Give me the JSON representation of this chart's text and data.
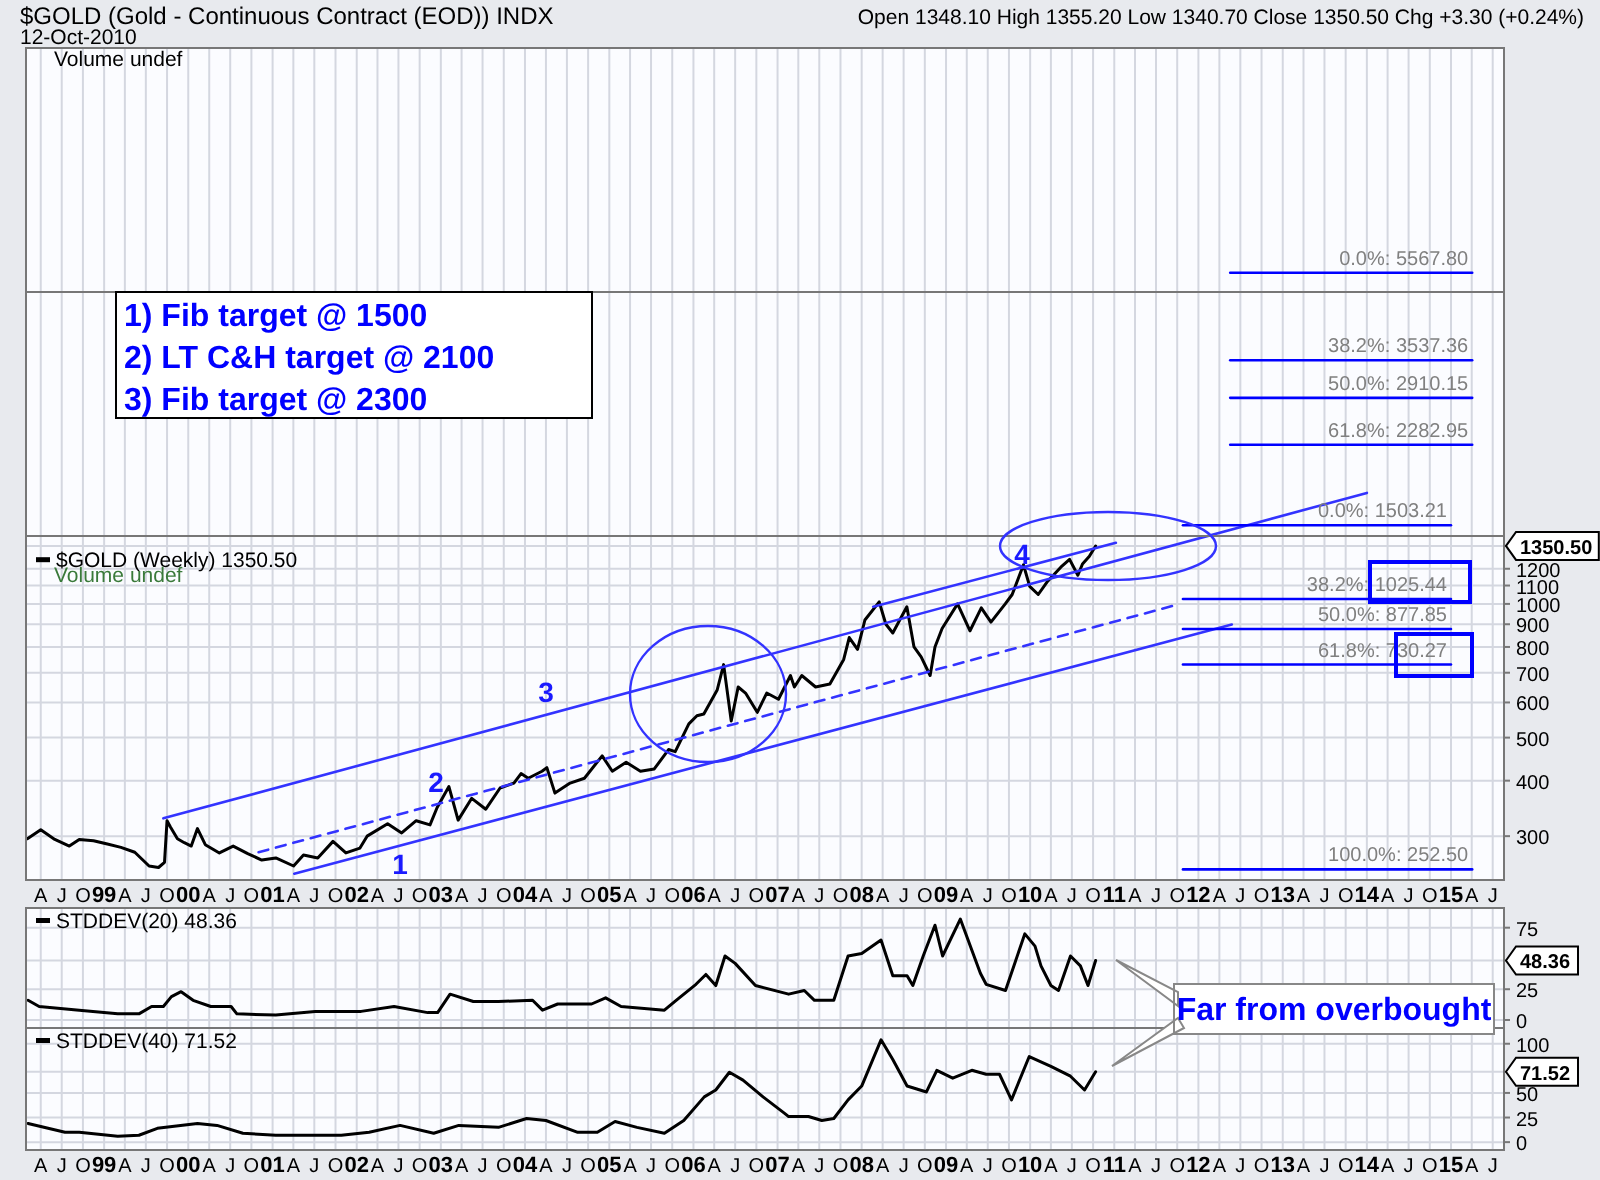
{
  "chart_data": [
    {
      "type": "line",
      "title": "$GOLD (Gold - Continuous Contract (EOD)) INDX",
      "subtitle": "12-Oct-2010",
      "log": true,
      "grid": true,
      "legend": "left",
      "xlim": [
        "1998-01-27",
        "2015-08-19"
      ],
      "ylim": [
        239,
        17850
      ],
      "xticks": [
        {
          "value": "1998-04",
          "label": "A"
        },
        {
          "value": "1998-07",
          "label": "J"
        },
        {
          "value": "1998-10",
          "label": "O"
        },
        {
          "value": "1999-01",
          "label": "99"
        },
        {
          "value": "1999-04",
          "label": "A"
        },
        {
          "value": "1999-07",
          "label": "J"
        },
        {
          "value": "1999-10",
          "label": "O"
        },
        {
          "value": "2000-01",
          "label": "00"
        },
        {
          "value": "2000-04",
          "label": "A"
        },
        {
          "value": "2000-07",
          "label": "J"
        },
        {
          "value": "2000-10",
          "label": "O"
        },
        {
          "value": "2001-01",
          "label": "01"
        },
        {
          "value": "2001-04",
          "label": "A"
        },
        {
          "value": "2001-07",
          "label": "J"
        },
        {
          "value": "2001-10",
          "label": "O"
        },
        {
          "value": "2002-01",
          "label": "02"
        },
        {
          "value": "2002-04",
          "label": "A"
        },
        {
          "value": "2002-07",
          "label": "J"
        },
        {
          "value": "2002-10",
          "label": "O"
        },
        {
          "value": "2003-01",
          "label": "03"
        },
        {
          "value": "2003-04",
          "label": "A"
        },
        {
          "value": "2003-07",
          "label": "J"
        },
        {
          "value": "2003-10",
          "label": "O"
        },
        {
          "value": "2004-01",
          "label": "04"
        },
        {
          "value": "2004-04",
          "label": "A"
        },
        {
          "value": "2004-07",
          "label": "J"
        },
        {
          "value": "2004-10",
          "label": "O"
        },
        {
          "value": "2005-01",
          "label": "05"
        },
        {
          "value": "2005-04",
          "label": "A"
        },
        {
          "value": "2005-07",
          "label": "J"
        },
        {
          "value": "2005-10",
          "label": "O"
        },
        {
          "value": "2006-01",
          "label": "06"
        },
        {
          "value": "2006-04",
          "label": "A"
        },
        {
          "value": "2006-07",
          "label": "J"
        },
        {
          "value": "2006-10",
          "label": "O"
        },
        {
          "value": "2007-01",
          "label": "07"
        },
        {
          "value": "2007-04",
          "label": "A"
        },
        {
          "value": "2007-07",
          "label": "J"
        },
        {
          "value": "2007-10",
          "label": "O"
        },
        {
          "value": "2008-01",
          "label": "08"
        },
        {
          "value": "2008-04",
          "label": "A"
        },
        {
          "value": "2008-07",
          "label": "J"
        },
        {
          "value": "2008-10",
          "label": "O"
        },
        {
          "value": "2009-01",
          "label": "09"
        },
        {
          "value": "2009-04",
          "label": "A"
        },
        {
          "value": "2009-07",
          "label": "J"
        },
        {
          "value": "2009-10",
          "label": "O"
        },
        {
          "value": "2010-01",
          "label": "10"
        },
        {
          "value": "2010-04",
          "label": "A"
        },
        {
          "value": "2010-07",
          "label": "J"
        },
        {
          "value": "2010-10",
          "label": "O"
        },
        {
          "value": "2011-01",
          "label": "11"
        },
        {
          "value": "2011-04",
          "label": "A"
        },
        {
          "value": "2011-07",
          "label": "J"
        },
        {
          "value": "2011-10",
          "label": "O"
        },
        {
          "value": "2012-01",
          "label": "12"
        },
        {
          "value": "2012-04",
          "label": "A"
        },
        {
          "value": "2012-07",
          "label": "J"
        },
        {
          "value": "2012-10",
          "label": "O"
        },
        {
          "value": "2013-01",
          "label": "13"
        },
        {
          "value": "2013-04",
          "label": "A"
        },
        {
          "value": "2013-07",
          "label": "J"
        },
        {
          "value": "2013-10",
          "label": "O"
        },
        {
          "value": "2014-01",
          "label": "14"
        },
        {
          "value": "2014-04",
          "label": "A"
        },
        {
          "value": "2014-07",
          "label": "J"
        },
        {
          "value": "2014-10",
          "label": "O"
        },
        {
          "value": "2015-01",
          "label": "15"
        },
        {
          "value": "2015-04",
          "label": "A"
        },
        {
          "value": "2015-07",
          "label": "J"
        }
      ],
      "yticks": [
        300,
        400,
        500,
        600,
        700,
        800,
        900,
        1000,
        1100,
        1200,
        {
          "value": 1350.5,
          "label": "1350.50"
        }
      ],
      "x": [
        "1998-02-02",
        "1998-04-01",
        "1998-06-01",
        "1998-08-03",
        "1998-09-15",
        "1998-11-16",
        "1999-01-15",
        "1999-03-15",
        "1999-05-14",
        "1999-07-15",
        "1999-08-25",
        "1999-09-20",
        "1999-10-01",
        "1999-10-15",
        "1999-11-15",
        "1999-12-15",
        "2000-01-14",
        "2000-02-10",
        "2000-03-15",
        "2000-05-15",
        "2000-07-14",
        "2000-09-15",
        "2000-11-15",
        "2001-01-15",
        "2001-04-02",
        "2001-05-15",
        "2001-07-16",
        "2001-09-20",
        "2001-11-15",
        "2002-01-15",
        "2002-02-15",
        "2002-05-15",
        "2002-07-15",
        "2002-09-16",
        "2002-11-15",
        "2002-12-16",
        "2003-02-05",
        "2003-03-17",
        "2003-05-15",
        "2003-07-15",
        "2003-09-15",
        "2003-11-14",
        "2003-12-15",
        "2004-01-15",
        "2004-03-15",
        "2004-04-05",
        "2004-05-10",
        "2004-07-15",
        "2004-09-15",
        "2004-12-01",
        "2005-01-14",
        "2005-03-15",
        "2005-05-16",
        "2005-07-15",
        "2005-09-15",
        "2005-10-14",
        "2005-12-12",
        "2006-01-16",
        "2006-02-15",
        "2006-04-14",
        "2006-05-12",
        "2006-06-14",
        "2006-07-14",
        "2006-08-15",
        "2006-10-05",
        "2006-11-15",
        "2007-01-05",
        "2007-02-26",
        "2007-03-15",
        "2007-04-16",
        "2007-06-15",
        "2007-08-16",
        "2007-10-15",
        "2007-11-08",
        "2007-12-14",
        "2008-01-15",
        "2008-03-17",
        "2008-04-15",
        "2008-05-15",
        "2008-07-15",
        "2008-08-15",
        "2008-09-15",
        "2008-10-24",
        "2008-11-14",
        "2008-12-15",
        "2009-02-20",
        "2009-04-15",
        "2009-06-03",
        "2009-07-15",
        "2009-09-15",
        "2009-10-15",
        "2009-12-03",
        "2009-12-30",
        "2010-02-05",
        "2010-03-15",
        "2010-05-14",
        "2010-06-21",
        "2010-07-27",
        "2010-08-16",
        "2010-09-15",
        "2010-10-12"
      ],
      "series": [
        {
          "name": "$GOLD (Weekly) 1350.50",
          "color": "#000000",
          "values": [
            296,
            310,
            295,
            285,
            295,
            293,
            288,
            283,
            276,
            257,
            255,
            262,
            325,
            315,
            296,
            290,
            285,
            312,
            287,
            275,
            285,
            274,
            265,
            268,
            257,
            272,
            268,
            292,
            275,
            282,
            300,
            320,
            305,
            325,
            318,
            348,
            388,
            326,
            365,
            345,
            385,
            395,
            415,
            405,
            420,
            428,
            375,
            395,
            405,
            455,
            420,
            440,
            420,
            425,
            470,
            465,
            537,
            560,
            565,
            640,
            730,
            545,
            650,
            630,
            570,
            630,
            610,
            690,
            650,
            690,
            650,
            660,
            750,
            840,
            790,
            920,
            1011,
            900,
            860,
            985,
            800,
            760,
            690,
            800,
            880,
            1000,
            870,
            980,
            910,
            1000,
            1050,
            1225,
            1095,
            1050,
            1120,
            1210,
            1260,
            1160,
            1230,
            1280,
            1350.5
          ]
        },
        {
          "type": "line",
          "color": "#3333ff",
          "x": [
            "1999-09-15",
            "2014-01-01"
          ],
          "values": [
            329,
            1778
          ]
        },
        {
          "type": "line",
          "color": "#3333ff",
          "x": [
            "2008-02-20",
            "2011-01-08"
          ],
          "values": [
            986,
            1373
          ]
        },
        {
          "type": "line",
          "color": "#3333ff",
          "x": [
            "2001-04-05",
            "2012-05-25"
          ],
          "values": [
            247,
            899
          ]
        },
        {
          "type": "line",
          "color": "#3333ff",
          "line_style": "dashed",
          "x": [
            "2000-11-01",
            "2011-10-01"
          ],
          "values": [
            276,
            996
          ]
        },
        {
          "type": "line",
          "name": "0.0%: 5567.80",
          "color": "#0000ff",
          "x": [
            "2012-05-18",
            "2015-04-03"
          ],
          "values": [
            5567.8,
            5567.8
          ]
        },
        {
          "type": "line",
          "name": "38.2%: 3537.36",
          "color": "#0000ff",
          "x": [
            "2012-05-18",
            "2015-04-03"
          ],
          "values": [
            3537.36,
            3537.36
          ]
        },
        {
          "type": "line",
          "name": "50.0%: 2910.15",
          "color": "#0000ff",
          "x": [
            "2012-05-18",
            "2015-04-03"
          ],
          "values": [
            2910.15,
            2910.15
          ]
        },
        {
          "type": "line",
          "name": "61.8%: 2282.95",
          "color": "#0000ff",
          "x": [
            "2012-05-18",
            "2015-04-03"
          ],
          "values": [
            2282.95,
            2282.95
          ]
        },
        {
          "type": "line",
          "name": "0.0%: 1503.21",
          "color": "#0000ff",
          "x": [
            "2011-10-26",
            "2015-01-01"
          ],
          "values": [
            1503.21,
            1503.21
          ]
        },
        {
          "type": "line",
          "name": "38.2%: 1025.44",
          "color": "#0000ff",
          "x": [
            "2011-10-26",
            "2015-01-01"
          ],
          "values": [
            1025.44,
            1025.44
          ]
        },
        {
          "type": "line",
          "name": "50.0%: 877.85",
          "color": "#0000ff",
          "x": [
            "2011-10-26",
            "2015-01-01"
          ],
          "values": [
            877.85,
            877.85
          ]
        },
        {
          "type": "line",
          "name": "61.8%: 730.27",
          "color": "#0000ff",
          "x": [
            "2011-10-26",
            "2015-01-01"
          ],
          "values": [
            730.27,
            730.27
          ]
        },
        {
          "type": "line",
          "name": "100.0%: 252.50",
          "color": "#0000ff",
          "x": [
            "2011-10-26",
            "2015-04-03"
          ],
          "values": [
            252.5,
            252.5
          ]
        }
      ],
      "annotations": [
        "Open 1348.10 High 1355.20 Low 1340.70 Close 1350.50 Chg +3.30 (+0.24%)",
        "Volume undef",
        "Volume undef",
        "1) Fib target @ 1500",
        "2) LT C&H target @ 2100",
        "3) Fib target @ 2300",
        "1",
        "2",
        "3",
        "4"
      ]
    },
    {
      "type": "line",
      "grid": true,
      "legend": "top left",
      "tick_labels": "y",
      "xlim": [
        "1998-01-27",
        "2015-08-19"
      ],
      "ylim": [
        -6.5,
        91
      ],
      "xticks": [
        {
          "value": "1998-04",
          "label": null
        },
        {
          "value": "1998-07",
          "label": null
        },
        {
          "value": "1998-10",
          "label": null
        },
        {
          "value": "1999-01",
          "label": null
        },
        {
          "value": "1999-04",
          "label": null
        },
        {
          "value": "1999-07",
          "label": null
        },
        {
          "value": "1999-10",
          "label": null
        },
        {
          "value": "2000-01",
          "label": null
        },
        {
          "value": "2000-04",
          "label": null
        },
        {
          "value": "2000-07",
          "label": null
        },
        {
          "value": "2000-10",
          "label": null
        },
        {
          "value": "2001-01",
          "label": null
        },
        {
          "value": "2001-04",
          "label": null
        },
        {
          "value": "2001-07",
          "label": null
        },
        {
          "value": "2001-10",
          "label": null
        },
        {
          "value": "2002-01",
          "label": null
        },
        {
          "value": "2002-04",
          "label": null
        },
        {
          "value": "2002-07",
          "label": null
        },
        {
          "value": "2002-10",
          "label": null
        },
        {
          "value": "2003-01",
          "label": null
        },
        {
          "value": "2003-04",
          "label": null
        },
        {
          "value": "2003-07",
          "label": null
        },
        {
          "value": "2003-10",
          "label": null
        },
        {
          "value": "2004-01",
          "label": null
        },
        {
          "value": "2004-04",
          "label": null
        },
        {
          "value": "2004-07",
          "label": null
        },
        {
          "value": "2004-10",
          "label": null
        },
        {
          "value": "2005-01",
          "label": null
        },
        {
          "value": "2005-04",
          "label": null
        },
        {
          "value": "2005-07",
          "label": null
        },
        {
          "value": "2005-10",
          "label": null
        },
        {
          "value": "2006-01",
          "label": null
        },
        {
          "value": "2006-04",
          "label": null
        },
        {
          "value": "2006-07",
          "label": null
        },
        {
          "value": "2006-10",
          "label": null
        },
        {
          "value": "2007-01",
          "label": null
        },
        {
          "value": "2007-04",
          "label": null
        },
        {
          "value": "2007-07",
          "label": null
        },
        {
          "value": "2007-10",
          "label": null
        },
        {
          "value": "2008-01",
          "label": null
        },
        {
          "value": "2008-04",
          "label": null
        },
        {
          "value": "2008-07",
          "label": null
        },
        {
          "value": "2008-10",
          "label": null
        },
        {
          "value": "2009-01",
          "label": null
        },
        {
          "value": "2009-04",
          "label": null
        },
        {
          "value": "2009-07",
          "label": null
        },
        {
          "value": "2009-10",
          "label": null
        },
        {
          "value": "2010-01",
          "label": null
        },
        {
          "value": "2010-04",
          "label": null
        },
        {
          "value": "2010-07",
          "label": null
        },
        {
          "value": "2010-10",
          "label": null
        },
        {
          "value": "2011-01",
          "label": null
        },
        {
          "value": "2011-04",
          "label": null
        },
        {
          "value": "2011-07",
          "label": null
        },
        {
          "value": "2011-10",
          "label": null
        },
        {
          "value": "2012-01",
          "label": null
        },
        {
          "value": "2012-04",
          "label": null
        },
        {
          "value": "2012-07",
          "label": null
        },
        {
          "value": "2012-10",
          "label": null
        },
        {
          "value": "2013-01",
          "label": null
        },
        {
          "value": "2013-04",
          "label": null
        },
        {
          "value": "2013-07",
          "label": null
        },
        {
          "value": "2013-10",
          "label": null
        },
        {
          "value": "2014-01",
          "label": null
        },
        {
          "value": "2014-04",
          "label": null
        },
        {
          "value": "2014-07",
          "label": null
        },
        {
          "value": "2014-10",
          "label": null
        },
        {
          "value": "2015-01",
          "label": null
        },
        {
          "value": "2015-04",
          "label": null
        },
        {
          "value": "2015-07",
          "label": null
        }
      ],
      "yticks": [
        0,
        25,
        {
          "value": 48.36,
          "label": "48.36"
        },
        75
      ],
      "x": [
        "1998-02-05",
        "1998-03-25",
        "1998-09-15",
        "1999-03-01",
        "1999-06-01",
        "1999-07-26",
        "1999-09-15",
        "1999-10-20",
        "1999-12-01",
        "2000-01-22",
        "2000-04-08",
        "2000-07-05",
        "2000-07-30",
        "2001-01-15",
        "2001-07-05",
        "2002-01-20",
        "2002-06-12",
        "2002-11-05",
        "2002-12-18",
        "2003-02-10",
        "2003-05-22",
        "2003-09-08",
        "2004-02-03",
        "2004-03-17",
        "2004-05-22",
        "2004-10-16",
        "2004-12-16",
        "2005-02-21",
        "2005-08-28",
        "2005-10-18",
        "2006-01-12",
        "2006-02-24",
        "2006-04-08",
        "2006-05-18",
        "2006-07-01",
        "2006-09-27",
        "2007-02-18",
        "2007-04-27",
        "2007-06-10",
        "2007-09-02",
        "2007-11-03",
        "2008-01-01",
        "2008-03-25",
        "2008-05-15",
        "2008-07-16",
        "2008-08-10",
        "2008-09-24",
        "2008-11-14",
        "2008-12-17",
        "2009-03-04",
        "2009-05-30",
        "2009-06-24",
        "2009-09-16",
        "2009-12-09",
        "2010-01-22",
        "2010-02-17",
        "2010-04-01",
        "2010-05-04",
        "2010-06-25",
        "2010-08-07",
        "2010-09-09",
        "2010-10-12"
      ],
      "series": [
        {
          "name": "STDDEV(20) 48.36",
          "color": "#000000",
          "values": [
            16,
            11,
            8,
            5,
            5,
            11,
            11,
            19,
            23,
            16,
            11,
            11,
            5,
            4,
            7,
            7,
            11,
            6,
            6,
            21,
            15,
            15,
            16,
            8,
            13,
            13,
            18,
            11,
            8,
            16,
            29,
            37,
            28,
            52,
            46,
            28,
            21,
            24,
            16,
            16,
            52,
            54,
            65,
            36,
            36,
            28,
            52,
            77,
            52,
            82,
            38,
            29,
            24,
            70,
            60,
            44,
            28,
            24,
            52,
            44,
            28,
            48.36
          ]
        }
      ]
    },
    {
      "type": "line",
      "grid": true,
      "legend": "top left",
      "xlim": [
        "1998-01-27",
        "2015-08-19"
      ],
      "ylim": [
        -8,
        116
      ],
      "xticks": [
        {
          "value": "1998-04",
          "label": "A"
        },
        {
          "value": "1998-07",
          "label": "J"
        },
        {
          "value": "1998-10",
          "label": "O"
        },
        {
          "value": "1999-01",
          "label": "99"
        },
        {
          "value": "1999-04",
          "label": "A"
        },
        {
          "value": "1999-07",
          "label": "J"
        },
        {
          "value": "1999-10",
          "label": "O"
        },
        {
          "value": "2000-01",
          "label": "00"
        },
        {
          "value": "2000-04",
          "label": "A"
        },
        {
          "value": "2000-07",
          "label": "J"
        },
        {
          "value": "2000-10",
          "label": "O"
        },
        {
          "value": "2001-01",
          "label": "01"
        },
        {
          "value": "2001-04",
          "label": "A"
        },
        {
          "value": "2001-07",
          "label": "J"
        },
        {
          "value": "2001-10",
          "label": "O"
        },
        {
          "value": "2002-01",
          "label": "02"
        },
        {
          "value": "2002-04",
          "label": "A"
        },
        {
          "value": "2002-07",
          "label": "J"
        },
        {
          "value": "2002-10",
          "label": "O"
        },
        {
          "value": "2003-01",
          "label": "03"
        },
        {
          "value": "2003-04",
          "label": "A"
        },
        {
          "value": "2003-07",
          "label": "J"
        },
        {
          "value": "2003-10",
          "label": "O"
        },
        {
          "value": "2004-01",
          "label": "04"
        },
        {
          "value": "2004-04",
          "label": "A"
        },
        {
          "value": "2004-07",
          "label": "J"
        },
        {
          "value": "2004-10",
          "label": "O"
        },
        {
          "value": "2005-01",
          "label": "05"
        },
        {
          "value": "2005-04",
          "label": "A"
        },
        {
          "value": "2005-07",
          "label": "J"
        },
        {
          "value": "2005-10",
          "label": "O"
        },
        {
          "value": "2006-01",
          "label": "06"
        },
        {
          "value": "2006-04",
          "label": "A"
        },
        {
          "value": "2006-07",
          "label": "J"
        },
        {
          "value": "2006-10",
          "label": "O"
        },
        {
          "value": "2007-01",
          "label": "07"
        },
        {
          "value": "2007-04",
          "label": "A"
        },
        {
          "value": "2007-07",
          "label": "J"
        },
        {
          "value": "2007-10",
          "label": "O"
        },
        {
          "value": "2008-01",
          "label": "08"
        },
        {
          "value": "2008-04",
          "label": "A"
        },
        {
          "value": "2008-07",
          "label": "J"
        },
        {
          "value": "2008-10",
          "label": "O"
        },
        {
          "value": "2009-01",
          "label": "09"
        },
        {
          "value": "2009-04",
          "label": "A"
        },
        {
          "value": "2009-07",
          "label": "J"
        },
        {
          "value": "2009-10",
          "label": "O"
        },
        {
          "value": "2010-01",
          "label": "10"
        },
        {
          "value": "2010-04",
          "label": "A"
        },
        {
          "value": "2010-07",
          "label": "J"
        },
        {
          "value": "2010-10",
          "label": "O"
        },
        {
          "value": "2011-01",
          "label": "11"
        },
        {
          "value": "2011-04",
          "label": "A"
        },
        {
          "value": "2011-07",
          "label": "J"
        },
        {
          "value": "2011-10",
          "label": "O"
        },
        {
          "value": "2012-01",
          "label": "12"
        },
        {
          "value": "2012-04",
          "label": "A"
        },
        {
          "value": "2012-07",
          "label": "J"
        },
        {
          "value": "2012-10",
          "label": "O"
        },
        {
          "value": "2013-01",
          "label": "13"
        },
        {
          "value": "2013-04",
          "label": "A"
        },
        {
          "value": "2013-07",
          "label": "J"
        },
        {
          "value": "2013-10",
          "label": "O"
        },
        {
          "value": "2014-01",
          "label": "14"
        },
        {
          "value": "2014-04",
          "label": "A"
        },
        {
          "value": "2014-07",
          "label": "J"
        },
        {
          "value": "2014-10",
          "label": "O"
        },
        {
          "value": "2015-01",
          "label": "15"
        },
        {
          "value": "2015-04",
          "label": "A"
        },
        {
          "value": "2015-07",
          "label": "J"
        }
      ],
      "yticks": [
        0,
        25,
        50,
        {
          "value": 71.52,
          "label": "71.52"
        },
        100
      ],
      "x": [
        "1998-02-05",
        "1998-07-15",
        "1998-09-15",
        "1999-03-01",
        "1999-06-01",
        "1999-08-20",
        "2000-02-10",
        "2000-05-05",
        "2000-08-25",
        "2001-01-15",
        "2001-10-26",
        "2002-02-24",
        "2002-07-08",
        "2002-12-01",
        "2003-03-20",
        "2003-09-08",
        "2004-01-08",
        "2004-04-01",
        "2004-08-17",
        "2004-11-10",
        "2005-01-26",
        "2005-05-01",
        "2005-08-28",
        "2005-11-20",
        "2006-02-17",
        "2006-04-08",
        "2006-06-06",
        "2006-08-04",
        "2006-10-30",
        "2007-02-02",
        "2007-02-18",
        "2007-05-15",
        "2007-07-12",
        "2007-09-02",
        "2007-11-03",
        "2008-01-01",
        "2008-03-25",
        "2008-05-15",
        "2008-07-16",
        "2008-10-08",
        "2008-11-22",
        "2009-01-30",
        "2009-04-23",
        "2009-06-24",
        "2009-08-21",
        "2009-10-12",
        "2009-12-28",
        "2010-04-01",
        "2010-06-25",
        "2010-08-25",
        "2010-10-12"
      ],
      "series": [
        {
          "name": "STDDEV(40) 71.52",
          "color": "#000000",
          "values": [
            19,
            10,
            10,
            6,
            7,
            14,
            19,
            17,
            9,
            7,
            7,
            10,
            17,
            9,
            17,
            15,
            24,
            22,
            10,
            10,
            21,
            15,
            9,
            22,
            46,
            53,
            71,
            63,
            46,
            29,
            26,
            26,
            22,
            24,
            43,
            57,
            104,
            84,
            57,
            51,
            73,
            65,
            73,
            69,
            69,
            43,
            87,
            77,
            67,
            53,
            71.52
          ]
        }
      ],
      "annotations": [
        "Far from overbought"
      ]
    }
  ]
}
